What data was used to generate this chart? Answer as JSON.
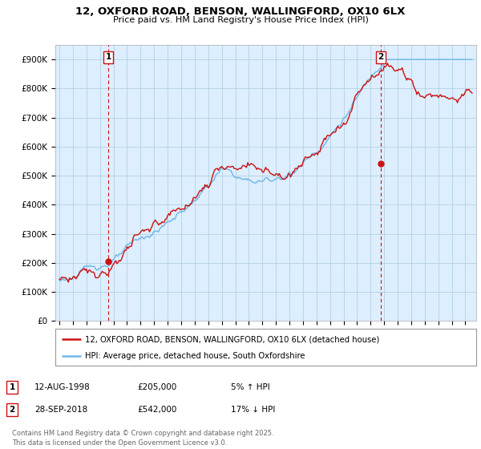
{
  "title": "12, OXFORD ROAD, BENSON, WALLINGFORD, OX10 6LX",
  "subtitle": "Price paid vs. HM Land Registry's House Price Index (HPI)",
  "ylabel_ticks": [
    "£0",
    "£100K",
    "£200K",
    "£300K",
    "£400K",
    "£500K",
    "£600K",
    "£700K",
    "£800K",
    "£900K"
  ],
  "ytick_values": [
    0,
    100000,
    200000,
    300000,
    400000,
    500000,
    600000,
    700000,
    800000,
    900000
  ],
  "ylim": [
    0,
    950000
  ],
  "xlim_start": 1994.7,
  "xlim_end": 2025.8,
  "sale1_date": 1998.617,
  "sale1_price": 205000,
  "sale1_label": "1",
  "sale2_date": 2018.747,
  "sale2_price": 542000,
  "sale2_label": "2",
  "legend_line1": "12, OXFORD ROAD, BENSON, WALLINGFORD, OX10 6LX (detached house)",
  "legend_line2": "HPI: Average price, detached house, South Oxfordshire",
  "footer": "Contains HM Land Registry data © Crown copyright and database right 2025.\nThis data is licensed under the Open Government Licence v3.0.",
  "hpi_color": "#6eb6e8",
  "price_color": "#cc1111",
  "bg_chart_color": "#ddeeff",
  "vline_color": "#cc1111",
  "bg_color": "#ffffff",
  "grid_color": "#aaccdd"
}
